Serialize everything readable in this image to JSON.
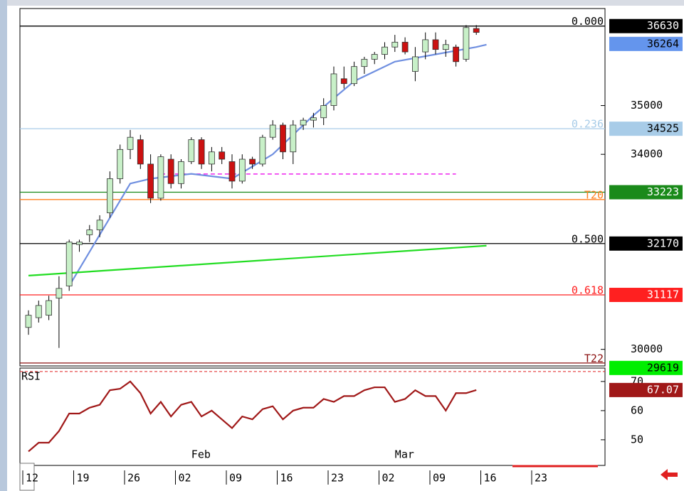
{
  "chart_data": {
    "type": "candlestick",
    "open": [
      30450,
      30650,
      30700,
      31050,
      31300,
      32150,
      32350,
      32450,
      32800,
      33500,
      34100,
      34300,
      33800,
      33100,
      33900,
      33400,
      33850,
      34300,
      33800,
      34050,
      33850,
      33450,
      33900,
      33800,
      34350,
      34600,
      34050,
      34600,
      34700,
      34750,
      35000,
      35550,
      35450,
      35800,
      35950,
      36050,
      36200,
      36300,
      35700,
      36100,
      36350,
      36150,
      36200,
      35950,
      36580
    ],
    "high": [
      30800,
      31000,
      31100,
      31500,
      32250,
      32250,
      32550,
      32750,
      33650,
      34200,
      34500,
      34400,
      34000,
      34000,
      34000,
      33900,
      34350,
      34350,
      34150,
      34150,
      34000,
      34000,
      33950,
      34400,
      34700,
      34650,
      34700,
      34750,
      34850,
      35150,
      35800,
      35800,
      35900,
      36000,
      36100,
      36300,
      36450,
      36400,
      36200,
      36500,
      36500,
      36350,
      36250,
      36650,
      36650
    ],
    "low": [
      30300,
      30550,
      30600,
      30030,
      31200,
      32000,
      32200,
      32300,
      32700,
      33400,
      33900,
      33700,
      33000,
      33050,
      33300,
      33300,
      33800,
      33700,
      33650,
      33800,
      33300,
      33400,
      33700,
      33750,
      34300,
      33900,
      33800,
      34500,
      34550,
      34600,
      34900,
      35350,
      35400,
      35650,
      35850,
      35950,
      36100,
      36050,
      35500,
      35950,
      36050,
      36000,
      35800,
      35900,
      36450
    ],
    "close": [
      30700,
      30900,
      31000,
      31250,
      32200,
      32200,
      32450,
      32650,
      33500,
      34100,
      34350,
      33800,
      33100,
      33950,
      33400,
      33850,
      34300,
      33800,
      34050,
      33900,
      33450,
      33900,
      33800,
      34350,
      34600,
      34050,
      34600,
      34700,
      34750,
      35000,
      35650,
      35450,
      35800,
      35950,
      36050,
      36200,
      36300,
      36100,
      36000,
      36350,
      36150,
      36250,
      35900,
      36600,
      36500
    ],
    "up_color": "#c8f0c8",
    "down_color": "#cc1111",
    "ylim": [
      29660,
      36990
    ],
    "yticks": [
      30000,
      34000,
      35000
    ],
    "xtick_labels": [
      "12",
      "19",
      "26",
      "02",
      "09",
      "16",
      "23",
      "02",
      "09",
      "16",
      "23"
    ],
    "month_labels": [
      {
        "label": "Feb",
        "at": 16
      },
      {
        "label": "Mar",
        "at": 36
      }
    ],
    "overlays": [
      {
        "color": "#6f8fe0",
        "x": [
          4,
          8,
          10,
          12,
          16,
          20,
          24,
          28,
          32,
          36,
          40,
          44,
          45
        ],
        "values": [
          31300,
          32700,
          33400,
          33500,
          33600,
          33500,
          34000,
          34800,
          35500,
          35900,
          36050,
          36200,
          36250
        ]
      },
      {
        "color": "#22dd22",
        "x": [
          0,
          45
        ],
        "values": [
          31513,
          32126
        ]
      }
    ],
    "segments": [
      {
        "value": 33596,
        "from": 13,
        "to": 42,
        "color": "#ee22ee"
      }
    ],
    "levels": [
      {
        "value": 36630,
        "color": "#000000",
        "label": "0.000",
        "tag_bg": "#000000",
        "tag_fg": "#ffffff"
      },
      {
        "value": 34525,
        "color": "#a8cce8",
        "label": "0.236",
        "tag_bg": "#a8cce8",
        "tag_fg": "#000000"
      },
      {
        "value": 33223,
        "color": "#1a8a1a",
        "tag_bg": "#1a8a1a",
        "tag_fg": "#ffffff"
      },
      {
        "value": 33073,
        "color": "#ff8020",
        "label": "T20"
      },
      {
        "value": 32170,
        "color": "#000000",
        "label": "0.500",
        "tag_bg": "#000000",
        "tag_fg": "#ffffff"
      },
      {
        "value": 31117,
        "color": "#ff2020",
        "label": "0.618",
        "tag_bg": "#ff2020",
        "tag_fg": "#ffffff"
      },
      {
        "value": 29720,
        "color": "#8b1010",
        "label": "T22"
      }
    ],
    "tags": [
      {
        "value": 36264,
        "bg": "#6495ed",
        "fg": "#000000"
      },
      {
        "value": 29619,
        "bg": "#00ee00",
        "fg": "#000000"
      }
    ],
    "rsi": {
      "label": "RSI",
      "color": "#a01818",
      "values": [
        46,
        49,
        49,
        53,
        59,
        59,
        61,
        62,
        67,
        67.5,
        70,
        66,
        59,
        63,
        58,
        62,
        63,
        58,
        60,
        57,
        54,
        58,
        57,
        60.5,
        61.5,
        57,
        60,
        61,
        61,
        64,
        63,
        65,
        65,
        67,
        68,
        68,
        63,
        64,
        67,
        65,
        65,
        60,
        66,
        66,
        67.07
      ],
      "ylim": [
        41.2,
        74.6
      ],
      "yticks": [
        50,
        60,
        70
      ],
      "level": 73.4
    }
  }
}
